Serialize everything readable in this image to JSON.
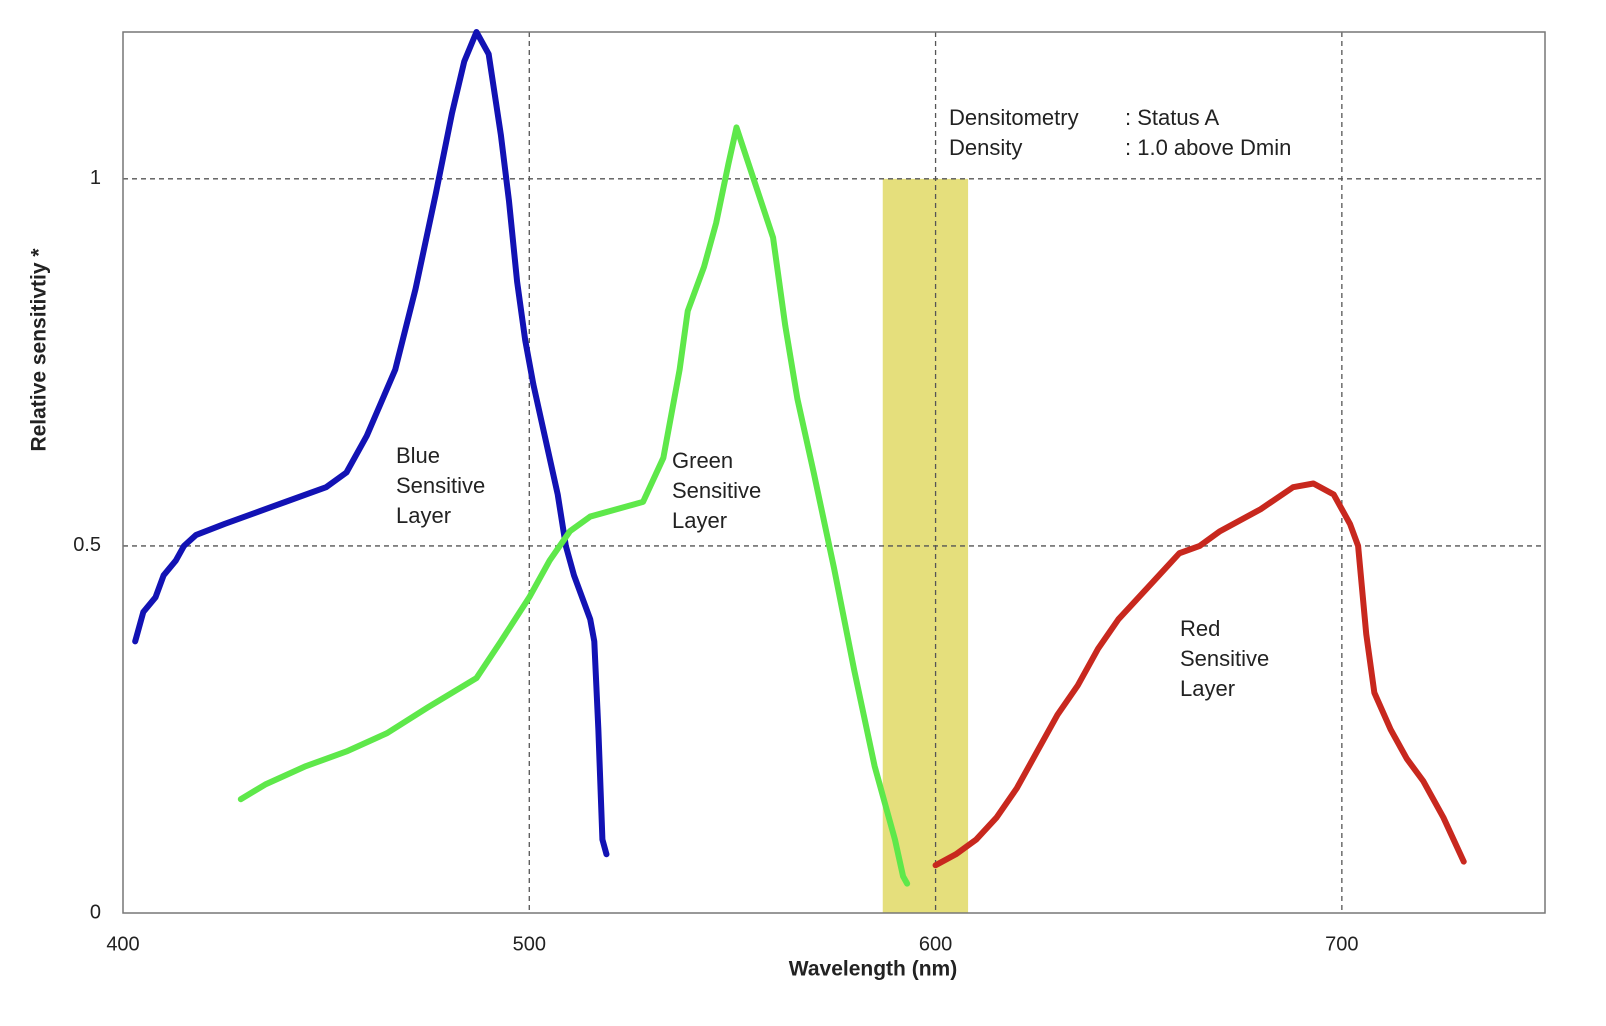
{
  "chart_data": {
    "type": "line",
    "xlabel": "Wavelength (nm)",
    "ylabel": "Relative sensitivtiy *",
    "xlim": [
      400,
      750
    ],
    "ylim": [
      0,
      1.2
    ],
    "xticks": [
      400,
      500,
      600,
      700
    ],
    "yticks": [
      0,
      0.5,
      1
    ],
    "grid": true,
    "band": {
      "x": [
        587,
        608
      ],
      "y": [
        0,
        1
      ],
      "color": "#e5df7c"
    },
    "notes": [
      {
        "label": "Densitometry",
        "value": ": Status A"
      },
      {
        "label": "Density",
        "value": ": 1.0 above  Dmin"
      }
    ],
    "series": [
      {
        "name": [
          "Blue",
          "Sensitive",
          "Layer"
        ],
        "color": "#1212b4",
        "x": [
          403,
          405,
          408,
          410,
          413,
          415,
          418,
          425,
          440,
          450,
          455,
          460,
          467,
          472,
          477,
          481,
          484,
          487,
          490,
          493,
          495,
          497,
          499,
          501,
          503,
          505,
          507,
          509,
          511,
          513,
          515,
          516,
          517,
          518,
          519
        ],
        "values": [
          0.37,
          0.41,
          0.43,
          0.46,
          0.48,
          0.5,
          0.515,
          0.53,
          0.56,
          0.58,
          0.6,
          0.65,
          0.74,
          0.85,
          0.98,
          1.09,
          1.16,
          1.2,
          1.17,
          1.06,
          0.97,
          0.86,
          0.78,
          0.72,
          0.67,
          0.62,
          0.57,
          0.5,
          0.46,
          0.43,
          0.4,
          0.37,
          0.25,
          0.1,
          0.08
        ]
      },
      {
        "name": [
          "Green",
          "Sensitive",
          "Layer"
        ],
        "color": "#5ee84a",
        "x": [
          429,
          435,
          445,
          455,
          465,
          475,
          487,
          493,
          500,
          505,
          510,
          515,
          528,
          533,
          537,
          539,
          543,
          546,
          549,
          551,
          554,
          560,
          563,
          566,
          570,
          575,
          580,
          585,
          590,
          592,
          593
        ],
        "values": [
          0.155,
          0.175,
          0.2,
          0.22,
          0.245,
          0.28,
          0.32,
          0.37,
          0.43,
          0.48,
          0.52,
          0.54,
          0.56,
          0.62,
          0.74,
          0.82,
          0.88,
          0.94,
          1.02,
          1.07,
          1.02,
          0.92,
          0.8,
          0.7,
          0.6,
          0.47,
          0.33,
          0.2,
          0.1,
          0.05,
          0.04
        ]
      },
      {
        "name": [
          "Red",
          "Sensitive",
          "Layer"
        ],
        "color": "#c8281e",
        "x": [
          600,
          605,
          610,
          615,
          620,
          625,
          630,
          635,
          640,
          645,
          650,
          655,
          660,
          665,
          670,
          680,
          688,
          693,
          698,
          702,
          704,
          706,
          708,
          712,
          716,
          720,
          725,
          730
        ],
        "values": [
          0.065,
          0.08,
          0.1,
          0.13,
          0.17,
          0.22,
          0.27,
          0.31,
          0.36,
          0.4,
          0.43,
          0.46,
          0.49,
          0.5,
          0.52,
          0.55,
          0.58,
          0.585,
          0.57,
          0.53,
          0.5,
          0.38,
          0.3,
          0.25,
          0.21,
          0.18,
          0.13,
          0.07
        ]
      }
    ]
  }
}
